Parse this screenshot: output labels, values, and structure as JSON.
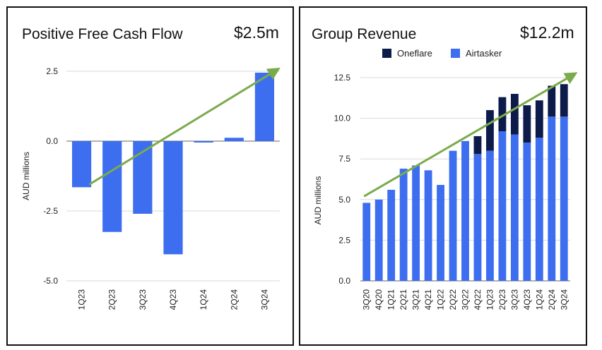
{
  "charts": {
    "left": {
      "headline": "$2.5m"
    },
    "right": {
      "headline": "$12.2m"
    }
  },
  "colors": {
    "airtasker": "#3d6ef0",
    "oneflare": "#0d1b4a",
    "trend": "#7aab4a",
    "grid": "#d9d9d9",
    "axis": "#666666"
  },
  "chart_data": [
    {
      "type": "bar",
      "title": "Positive Free Cash Flow",
      "ylabel": "AUD millions",
      "xlabel": "",
      "categories": [
        "1Q23",
        "2Q23",
        "3Q23",
        "4Q23",
        "1Q24",
        "2Q24",
        "3Q24"
      ],
      "values": [
        -1.65,
        -3.25,
        -2.6,
        -4.05,
        -0.05,
        0.12,
        2.45
      ],
      "ylim": [
        -5.0,
        2.5
      ],
      "yticks": [
        "2.5",
        "0.0",
        "-2.5",
        "-5.0"
      ],
      "grid": true,
      "trend_arrow": {
        "from": [
          0.25,
          -1.55
        ],
        "to": [
          6.4,
          2.55
        ]
      }
    },
    {
      "type": "bar",
      "stacked": true,
      "title": "Group Revenue",
      "ylabel": "AUD millions",
      "xlabel": "",
      "categories": [
        "3Q20",
        "4Q20",
        "1Q21",
        "2Q21",
        "3Q21",
        "4Q21",
        "1Q22",
        "2Q22",
        "3Q22",
        "4Q22",
        "1Q23",
        "2Q23",
        "3Q23",
        "4Q23",
        "1Q24",
        "2Q24",
        "3Q24"
      ],
      "series": [
        {
          "name": "Airtasker",
          "values": [
            4.8,
            5.0,
            5.6,
            6.9,
            7.1,
            6.8,
            5.9,
            8.0,
            8.6,
            7.8,
            8.0,
            9.2,
            9.0,
            8.5,
            8.8,
            10.1,
            10.1
          ]
        },
        {
          "name": "Oneflare",
          "values": [
            0,
            0,
            0,
            0,
            0,
            0,
            0,
            0,
            0,
            1.1,
            2.5,
            2.1,
            2.5,
            2.3,
            2.3,
            1.9,
            2.0
          ]
        }
      ],
      "ylim": [
        0,
        12.5
      ],
      "yticks": [
        "12.5",
        "10.0",
        "7.5",
        "5.0",
        "2.5",
        "0.0"
      ],
      "legend": "top",
      "grid": true,
      "trend_arrow": {
        "from": [
          -0.2,
          5.2
        ],
        "to": [
          16.8,
          12.7
        ]
      }
    }
  ]
}
